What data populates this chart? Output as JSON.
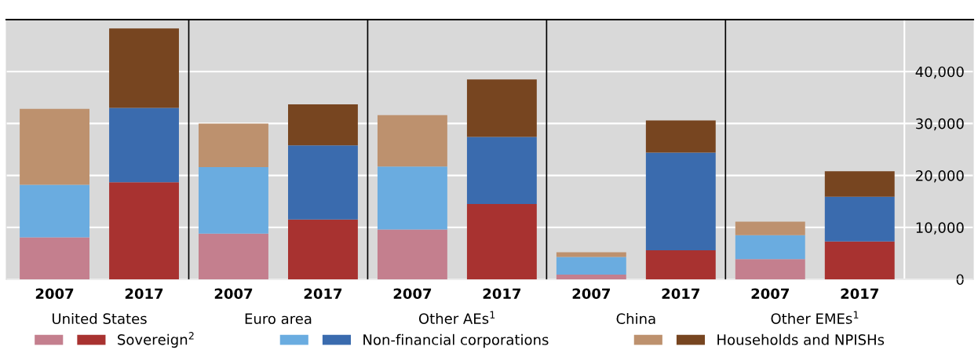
{
  "chart_data": {
    "type": "bar",
    "stacked": true,
    "categories": [
      "2007",
      "2017",
      "2007",
      "2017",
      "2007",
      "2017",
      "2007",
      "2017",
      "2007",
      "2017"
    ],
    "series": [
      {
        "name": "Sovereign$^{2}$",
        "colors": [
          "#c47f8e",
          "#a83230",
          "#c47f8e",
          "#a83230",
          "#c47f8e",
          "#a83230",
          "#c47f8e",
          "#a83230",
          "#c47f8e",
          "#a83230"
        ],
        "values": [
          8100,
          18700,
          8800,
          11500,
          9600,
          14500,
          900,
          5600,
          3900,
          7300
        ]
      },
      {
        "name": "Non-financial corporations",
        "colors": [
          "#6aace0",
          "#3a6bae",
          "#6aace0",
          "#3a6bae",
          "#6aace0",
          "#3a6bae",
          "#6aace0",
          "#3a6bae",
          "#6aace0",
          "#3a6bae"
        ],
        "values": [
          10100,
          14300,
          12800,
          14300,
          12100,
          12900,
          3400,
          18800,
          4600,
          8600
        ]
      },
      {
        "name": "Households and NPISHs",
        "colors": [
          "#bd916e",
          "#774520",
          "#bd916e",
          "#774520",
          "#bd916e",
          "#774520",
          "#bd916e",
          "#774520",
          "#bd916e",
          "#774520"
        ],
        "values": [
          14600,
          15300,
          8400,
          7900,
          9900,
          11100,
          900,
          6200,
          2600,
          4900
        ]
      }
    ],
    "annotations": [
      "United States",
      "Euro area",
      "Other AEs$^{1}$",
      "China",
      "Other EMEs$^{1}$"
    ],
    "ylim": [
      0,
      50000
    ],
    "yticks": [
      0,
      {
        "value": 10000,
        "label": "10,000"
      },
      {
        "value": 20000,
        "label": "20,000"
      },
      {
        "value": 30000,
        "label": "30,000"
      },
      {
        "value": 40000,
        "label": "40,000"
      }
    ],
    "grid": "y",
    "legend": "bottom"
  }
}
